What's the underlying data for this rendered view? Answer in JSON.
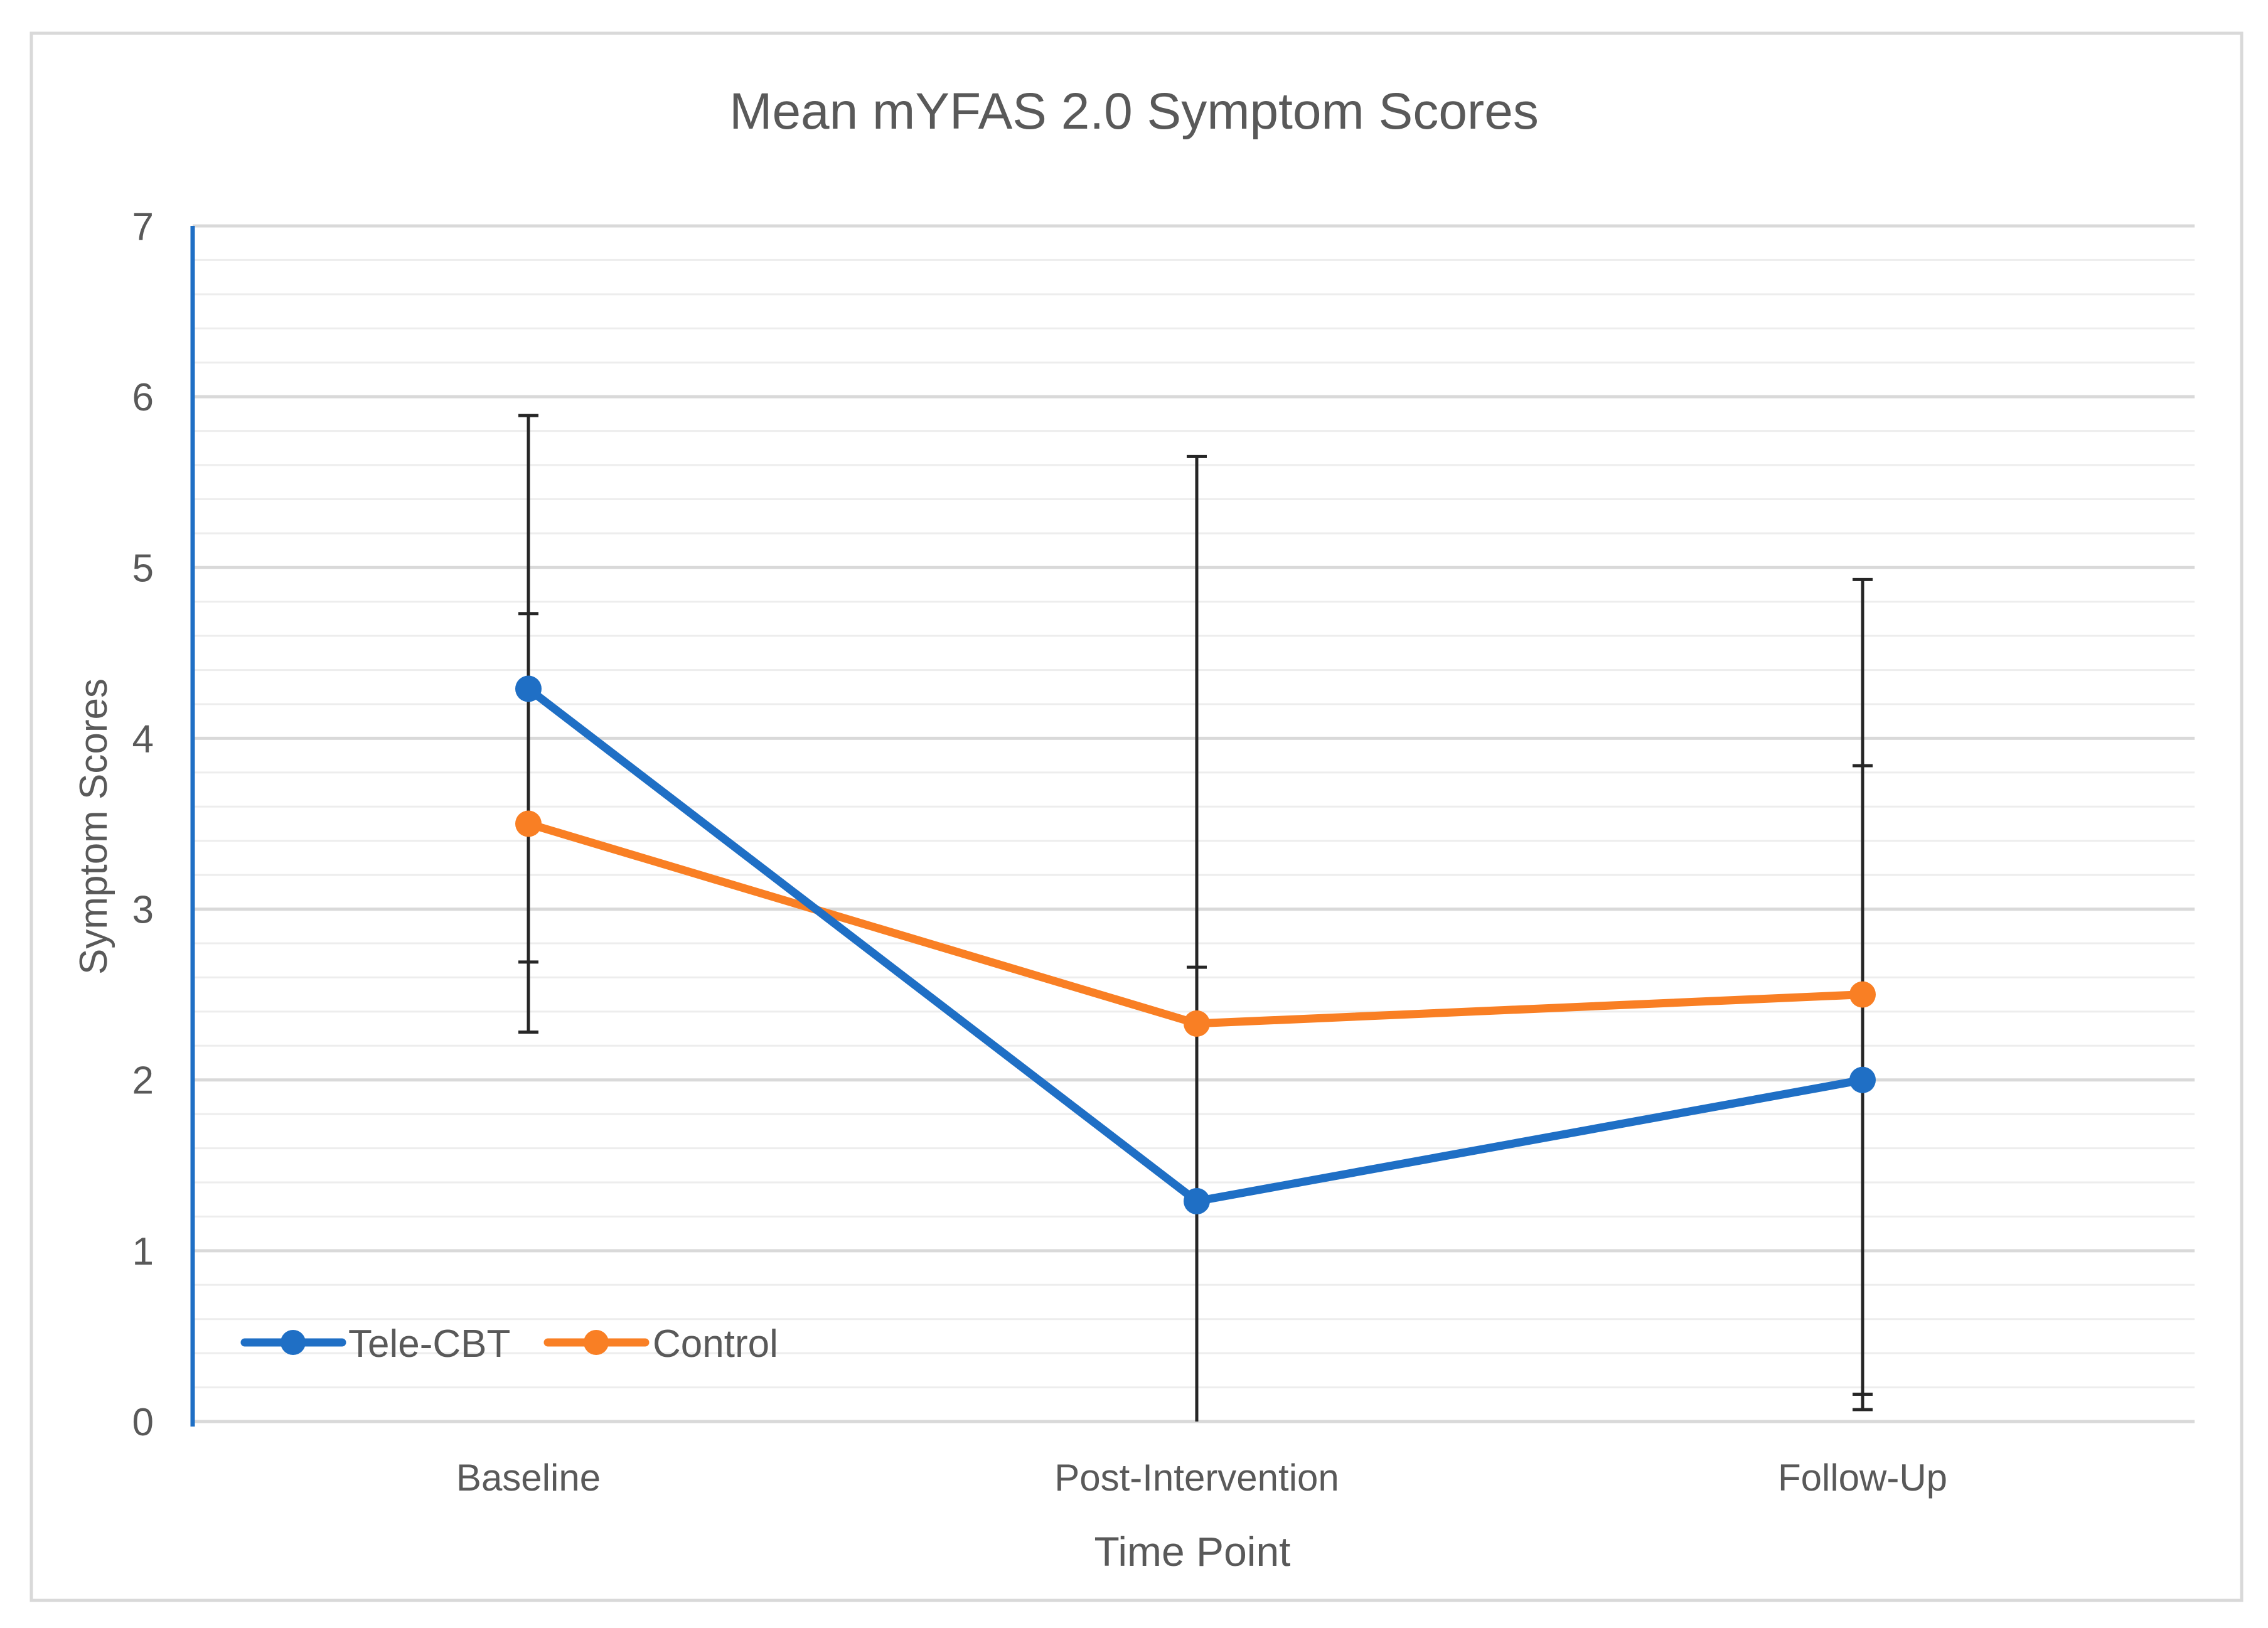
{
  "chart_data": {
    "type": "line",
    "title": "Mean mYFAS 2.0 Symptom Scores",
    "xlabel": "Time Point",
    "ylabel": "Symptom Scores",
    "categories": [
      "Baseline",
      "Post-Intervention",
      "Follow-Up"
    ],
    "ylim": [
      0,
      7
    ],
    "yticks": [
      0,
      1,
      2,
      3,
      4,
      5,
      6,
      7
    ],
    "minor_step": 0.2,
    "grid": true,
    "legend_position": "bottom-left",
    "series": [
      {
        "name": "Tele-CBT",
        "color": "#1F6FC5",
        "values": [
          4.29,
          1.29,
          2.0
        ],
        "error_low": [
          2.69,
          0.0,
          0.07
        ],
        "error_high": [
          5.89,
          5.65,
          4.93
        ]
      },
      {
        "name": "Control",
        "color": "#F97F24",
        "values": [
          3.5,
          2.33,
          2.5
        ],
        "error_low": [
          2.28,
          0.0,
          0.16
        ],
        "error_high": [
          4.73,
          2.66,
          3.84
        ]
      }
    ]
  },
  "colors": {
    "axis": "#1F6FC5",
    "grid_major": "#D9D9D9",
    "grid_minor": "#EDEDED",
    "error_bar": "#262626",
    "text": "#595959",
    "frame": "#D9D9D9"
  }
}
